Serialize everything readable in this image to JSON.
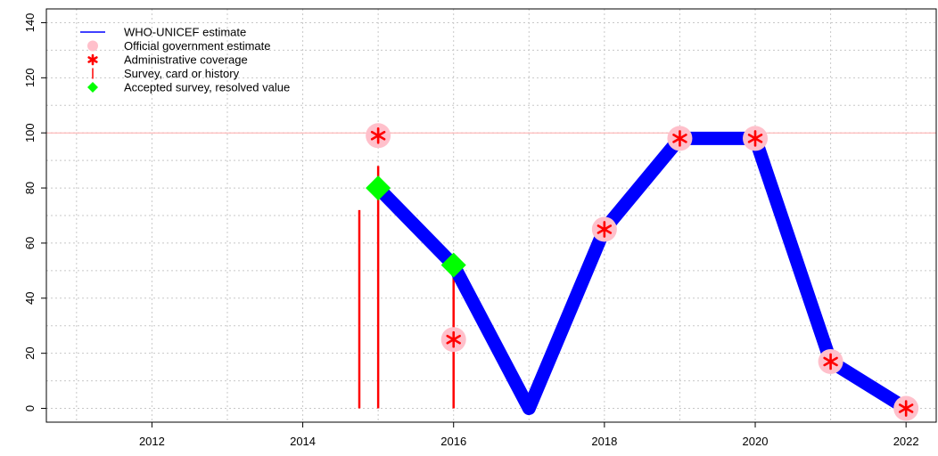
{
  "chart_data": {
    "type": "line",
    "title": "",
    "xlabel": "",
    "ylabel": "",
    "xlim": [
      2010.6,
      2022.4
    ],
    "ylim": [
      -5,
      145
    ],
    "x_ticks": [
      2012,
      2014,
      2016,
      2018,
      2020,
      2022
    ],
    "y_ticks": [
      0,
      20,
      40,
      60,
      80,
      100,
      120,
      140
    ],
    "grid": true,
    "reference_line_y": 100,
    "legend": {
      "placement": "top-left",
      "entries": [
        {
          "label": "WHO-UNICEF estimate",
          "marker": "line",
          "color": "#0000ff"
        },
        {
          "label": "Official government estimate",
          "marker": "circle",
          "color": "#ffc0cb"
        },
        {
          "label": "Administrative coverage",
          "marker": "asterisk",
          "color": "#ff0000"
        },
        {
          "label": "Survey, card or history",
          "marker": "vbar",
          "color": "#ff0000"
        },
        {
          "label": "Accepted survey, resolved value",
          "marker": "diamond",
          "color": "#00ff00"
        }
      ]
    },
    "series": [
      {
        "name": "WHO-UNICEF estimate",
        "color": "#0000ff",
        "x": [
          2015,
          2016,
          2017,
          2018,
          2019,
          2020,
          2021,
          2022
        ],
        "y": [
          80,
          52,
          0,
          65,
          98,
          98,
          17,
          0
        ]
      },
      {
        "name": "Official government estimate",
        "color": "#ffc0cb",
        "x": [
          2015,
          2016,
          2018,
          2019,
          2020,
          2021,
          2022
        ],
        "y": [
          99,
          25,
          65,
          98,
          98,
          17,
          0
        ]
      },
      {
        "name": "Administrative coverage",
        "color": "#ff0000",
        "x": [
          2015,
          2016,
          2018,
          2019,
          2020,
          2021,
          2022
        ],
        "y": [
          99,
          25,
          65,
          98,
          98,
          17,
          0
        ]
      },
      {
        "name": "Survey, card or history",
        "color": "#ff0000",
        "x": [
          2014.75,
          2015,
          2016
        ],
        "y": [
          72,
          88,
          52
        ]
      },
      {
        "name": "Accepted survey, resolved value",
        "color": "#00ff00",
        "x": [
          2015,
          2016
        ],
        "y": [
          80,
          52
        ]
      }
    ]
  }
}
